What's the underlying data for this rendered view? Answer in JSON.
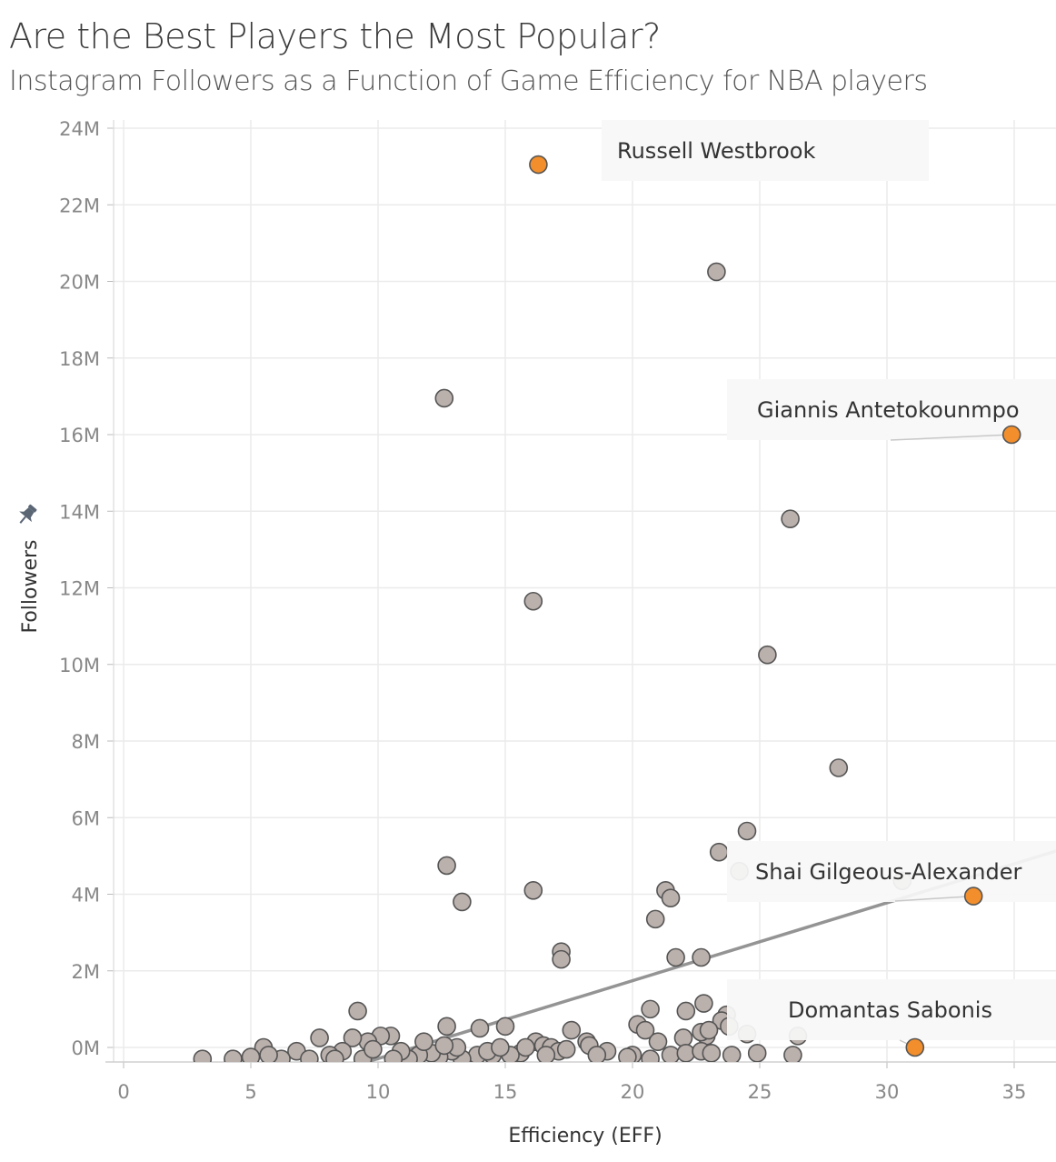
{
  "header": {
    "title": "Are the Best Players the Most Popular?",
    "subtitle": "Instagram Followers as a Function of Game Efficiency for NBA players"
  },
  "icons": {
    "pin": "pin-icon"
  },
  "colors": {
    "highlight": "#f28e2b",
    "point": "#bab0ac",
    "trend": "#888888",
    "grid": "#ebebeb"
  },
  "chart_data": {
    "type": "scatter",
    "xlabel": "Efficiency (EFF)",
    "ylabel": "Followers",
    "xlim": [
      -0.5,
      37
    ],
    "ylim": [
      -0.4,
      24.4
    ],
    "x_ticks": [
      0,
      5,
      10,
      15,
      20,
      25,
      30,
      35
    ],
    "x_tick_labels": [
      "0",
      "5",
      "10",
      "15",
      "20",
      "25",
      "30",
      "35"
    ],
    "y_ticks": [
      0,
      2,
      4,
      6,
      8,
      10,
      12,
      14,
      16,
      18,
      20,
      22,
      24
    ],
    "y_tick_labels": [
      "0M",
      "2M",
      "4M",
      "6M",
      "8M",
      "10M",
      "12M",
      "14M",
      "16M",
      "18M",
      "20M",
      "22M",
      "24M"
    ],
    "y_unit": "M",
    "grid": true,
    "trend_line": {
      "x": [
        7.5,
        37
      ],
      "y": [
        -0.8,
        5.2
      ]
    },
    "highlighted": [
      {
        "name": "Russell Westbrook",
        "x": 16.3,
        "y": 23.05
      },
      {
        "name": "Giannis Antetokounmpo",
        "x": 34.9,
        "y": 16.0
      },
      {
        "name": "Shai Gilgeous-Alexander",
        "x": 33.4,
        "y": 3.95
      },
      {
        "name": "Domantas Sabonis",
        "x": 31.1,
        "y": 0.0
      }
    ],
    "points": [
      [
        23.3,
        20.25
      ],
      [
        12.6,
        16.95
      ],
      [
        26.2,
        13.8
      ],
      [
        16.1,
        11.65
      ],
      [
        25.3,
        10.25
      ],
      [
        28.1,
        7.3
      ],
      [
        24.5,
        5.65
      ],
      [
        23.4,
        5.1
      ],
      [
        24.2,
        4.6
      ],
      [
        30.6,
        4.35
      ],
      [
        12.7,
        4.75
      ],
      [
        16.1,
        4.1
      ],
      [
        13.3,
        3.8
      ],
      [
        21.3,
        4.1
      ],
      [
        21.5,
        3.9
      ],
      [
        20.9,
        3.35
      ],
      [
        17.2,
        2.5
      ],
      [
        17.2,
        2.3
      ],
      [
        21.7,
        2.35
      ],
      [
        22.7,
        2.35
      ],
      [
        9.2,
        0.95
      ],
      [
        22.8,
        1.15
      ],
      [
        23.7,
        0.85
      ],
      [
        20.7,
        1.0
      ],
      [
        22.1,
        0.95
      ],
      [
        24.5,
        0.35
      ],
      [
        26.5,
        0.3
      ],
      [
        12.7,
        0.55
      ],
      [
        14.0,
        0.5
      ],
      [
        15.0,
        0.55
      ],
      [
        17.6,
        0.45
      ],
      [
        20.2,
        0.6
      ],
      [
        20.5,
        0.45
      ],
      [
        23.5,
        0.7
      ],
      [
        23.8,
        0.55
      ],
      [
        22.9,
        0.3
      ],
      [
        22.7,
        0.4
      ],
      [
        21.0,
        0.15
      ],
      [
        22.0,
        0.25
      ],
      [
        23.0,
        0.45
      ],
      [
        18.2,
        0.15
      ],
      [
        18.3,
        0.05
      ],
      [
        19.0,
        -0.1
      ],
      [
        20.0,
        -0.2
      ],
      [
        20.7,
        -0.3
      ],
      [
        21.5,
        -0.2
      ],
      [
        22.1,
        -0.15
      ],
      [
        22.7,
        -0.1
      ],
      [
        23.1,
        -0.15
      ],
      [
        23.9,
        -0.2
      ],
      [
        24.9,
        -0.15
      ],
      [
        26.3,
        -0.2
      ],
      [
        16.2,
        0.15
      ],
      [
        16.5,
        0.05
      ],
      [
        16.8,
        0.0
      ],
      [
        17.1,
        -0.1
      ],
      [
        15.6,
        -0.15
      ],
      [
        15.2,
        -0.2
      ],
      [
        14.5,
        -0.2
      ],
      [
        13.9,
        -0.2
      ],
      [
        13.3,
        -0.3
      ],
      [
        12.9,
        -0.1
      ],
      [
        12.4,
        -0.25
      ],
      [
        12.1,
        -0.15
      ],
      [
        11.6,
        -0.2
      ],
      [
        11.2,
        -0.3
      ],
      [
        10.9,
        -0.1
      ],
      [
        10.5,
        0.3
      ],
      [
        10.1,
        0.3
      ],
      [
        9.6,
        0.15
      ],
      [
        9.0,
        0.25
      ],
      [
        8.6,
        -0.1
      ],
      [
        7.7,
        0.25
      ],
      [
        6.8,
        -0.1
      ],
      [
        5.5,
        0.0
      ],
      [
        5.0,
        -0.25
      ],
      [
        4.3,
        -0.3
      ],
      [
        3.1,
        -0.3
      ],
      [
        13.1,
        0.0
      ],
      [
        14.3,
        -0.1
      ],
      [
        15.8,
        0.0
      ],
      [
        17.4,
        -0.05
      ],
      [
        18.6,
        -0.2
      ],
      [
        16.6,
        -0.2
      ],
      [
        11.8,
        0.15
      ],
      [
        10.6,
        -0.3
      ],
      [
        9.4,
        -0.3
      ],
      [
        8.1,
        -0.2
      ],
      [
        7.3,
        -0.3
      ],
      [
        6.2,
        -0.3
      ],
      [
        5.7,
        -0.2
      ],
      [
        8.3,
        -0.3
      ],
      [
        9.8,
        -0.05
      ],
      [
        12.6,
        0.05
      ],
      [
        14.8,
        0.0
      ],
      [
        19.8,
        -0.25
      ]
    ]
  }
}
